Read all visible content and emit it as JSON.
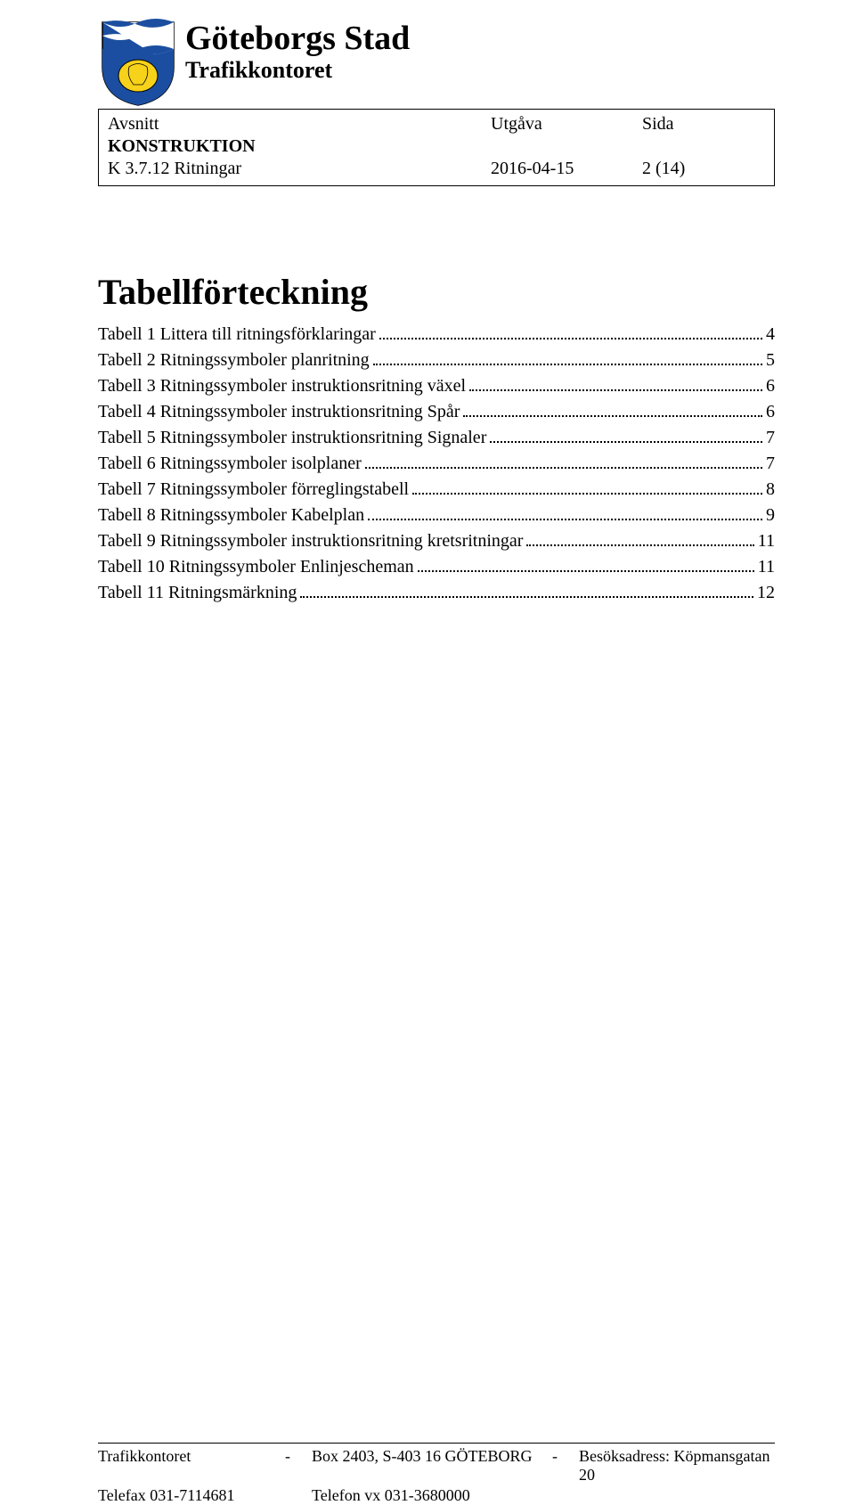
{
  "header": {
    "org_name": "Göteborgs Stad",
    "dept_name": "Trafikkontoret",
    "crest_colors": {
      "blue": "#1b4ea0",
      "yellow": "#f7d21a",
      "white": "#ffffff",
      "outline": "#000000"
    }
  },
  "meta": {
    "avsnitt_label": "Avsnitt",
    "utgava_label": "Utgåva",
    "sida_label": "Sida",
    "section_line1": "KONSTRUKTION",
    "section_line2": "K 3.7.12 Ritningar",
    "date": "2016-04-15",
    "page": "2 (14)"
  },
  "toc": {
    "title": "Tabellförteckning",
    "entries": [
      {
        "label": "Tabell 1 Littera till ritningsförklaringar",
        "page": "4"
      },
      {
        "label": "Tabell 2 Ritningssymboler planritning",
        "page": "5"
      },
      {
        "label": "Tabell 3 Ritningssymboler instruktionsritning växel",
        "page": "6"
      },
      {
        "label": "Tabell 4 Ritningssymboler instruktionsritning Spår",
        "page": "6"
      },
      {
        "label": "Tabell 5 Ritningssymboler instruktionsritning Signaler",
        "page": "7"
      },
      {
        "label": "Tabell 6 Ritningssymboler isolplaner",
        "page": "7"
      },
      {
        "label": "Tabell 7 Ritningssymboler förreglingstabell",
        "page": "8"
      },
      {
        "label": "Tabell 8 Ritningssymboler Kabelplan",
        "page": "9"
      },
      {
        "label": "Tabell 9 Ritningssymboler instruktionsritning kretsritningar",
        "page": "11"
      },
      {
        "label": "Tabell 10 Ritningssymboler Enlinjescheman",
        "page": "11"
      },
      {
        "label": "Tabell 11 Ritningsmärkning",
        "page": "12"
      }
    ]
  },
  "footer": {
    "col1_line1": "Trafikkontoret",
    "col1_line2": "Telefax 031-7114681",
    "col2_line1": "Box 2403, S-403 16  GÖTEBORG",
    "col2_line2": "Telefon vx 031-3680000",
    "col3_line1": "Besöksadress: Köpmansgatan 20",
    "dash": "-"
  }
}
